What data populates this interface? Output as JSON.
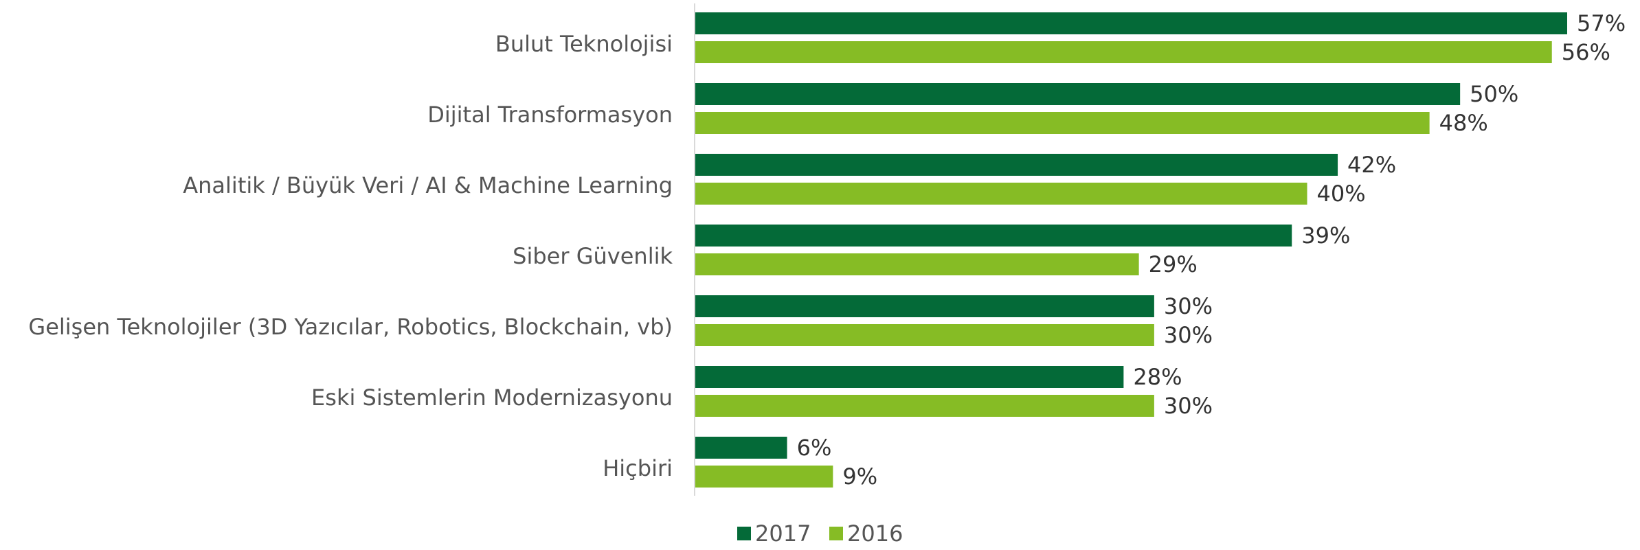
{
  "chart_data": {
    "type": "bar",
    "orientation": "horizontal",
    "categories": [
      "Bulut Teknolojisi",
      "Dijital Transformasyon",
      "Analitik / Büyük Veri / AI & Machine Learning",
      "Siber Güvenlik",
      "Gelişen Teknolojiler (3D Yazıcılar, Robotics, Blockchain, vb)",
      "Eski Sistemlerin Modernizasyonu",
      "Hiçbiri"
    ],
    "series": [
      {
        "name": "2017",
        "color": "#046a38",
        "values": [
          57,
          50,
          42,
          39,
          30,
          28,
          6
        ],
        "value_labels": [
          "57%",
          "50%",
          "42%",
          "39%",
          "30%",
          "28%",
          "6%"
        ]
      },
      {
        "name": "2016",
        "color": "#86bc25",
        "values": [
          56,
          48,
          40,
          29,
          30,
          30,
          9
        ],
        "value_labels": [
          "56%",
          "48%",
          "40%",
          "29%",
          "30%",
          "30%",
          "9%"
        ]
      }
    ],
    "legend": "bottom"
  }
}
